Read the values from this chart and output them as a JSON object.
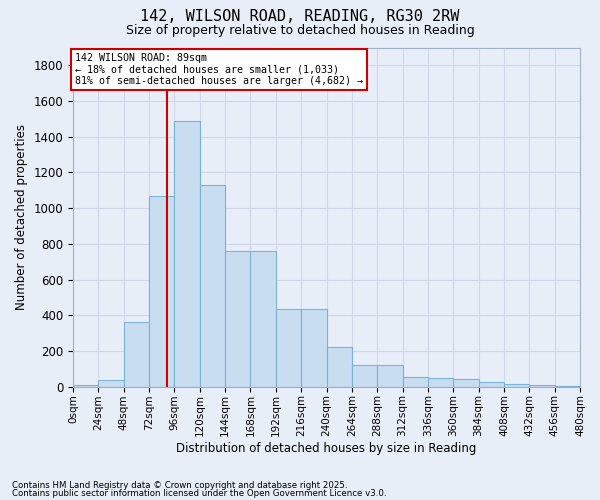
{
  "title": "142, WILSON ROAD, READING, RG30 2RW",
  "subtitle": "Size of property relative to detached houses in Reading",
  "xlabel": "Distribution of detached houses by size in Reading",
  "ylabel": "Number of detached properties",
  "bin_width": 24,
  "bin_edges": [
    0,
    24,
    48,
    72,
    96,
    120,
    144,
    168,
    192,
    216,
    240,
    264,
    288,
    312,
    336,
    360,
    384,
    408,
    432,
    456,
    480
  ],
  "bar_values": [
    10,
    35,
    360,
    1070,
    1490,
    1130,
    760,
    760,
    435,
    435,
    225,
    120,
    120,
    55,
    50,
    45,
    25,
    15,
    8,
    5
  ],
  "bar_color": "#c9ddf0",
  "bar_edge_color": "#7ab3d8",
  "vline_x": 89,
  "vline_color": "#cc0000",
  "annotation_text": "142 WILSON ROAD: 89sqm\n← 18% of detached houses are smaller (1,033)\n81% of semi-detached houses are larger (4,682) →",
  "annotation_box_facecolor": "#ffffff",
  "annotation_box_edgecolor": "#cc0000",
  "ylim": [
    0,
    1900
  ],
  "yticks": [
    0,
    200,
    400,
    600,
    800,
    1000,
    1200,
    1400,
    1600,
    1800
  ],
  "bg_color": "#e8eef8",
  "grid_color": "#d0d8e8",
  "footer1": "Contains HM Land Registry data © Crown copyright and database right 2025.",
  "footer2": "Contains public sector information licensed under the Open Government Licence v3.0."
}
